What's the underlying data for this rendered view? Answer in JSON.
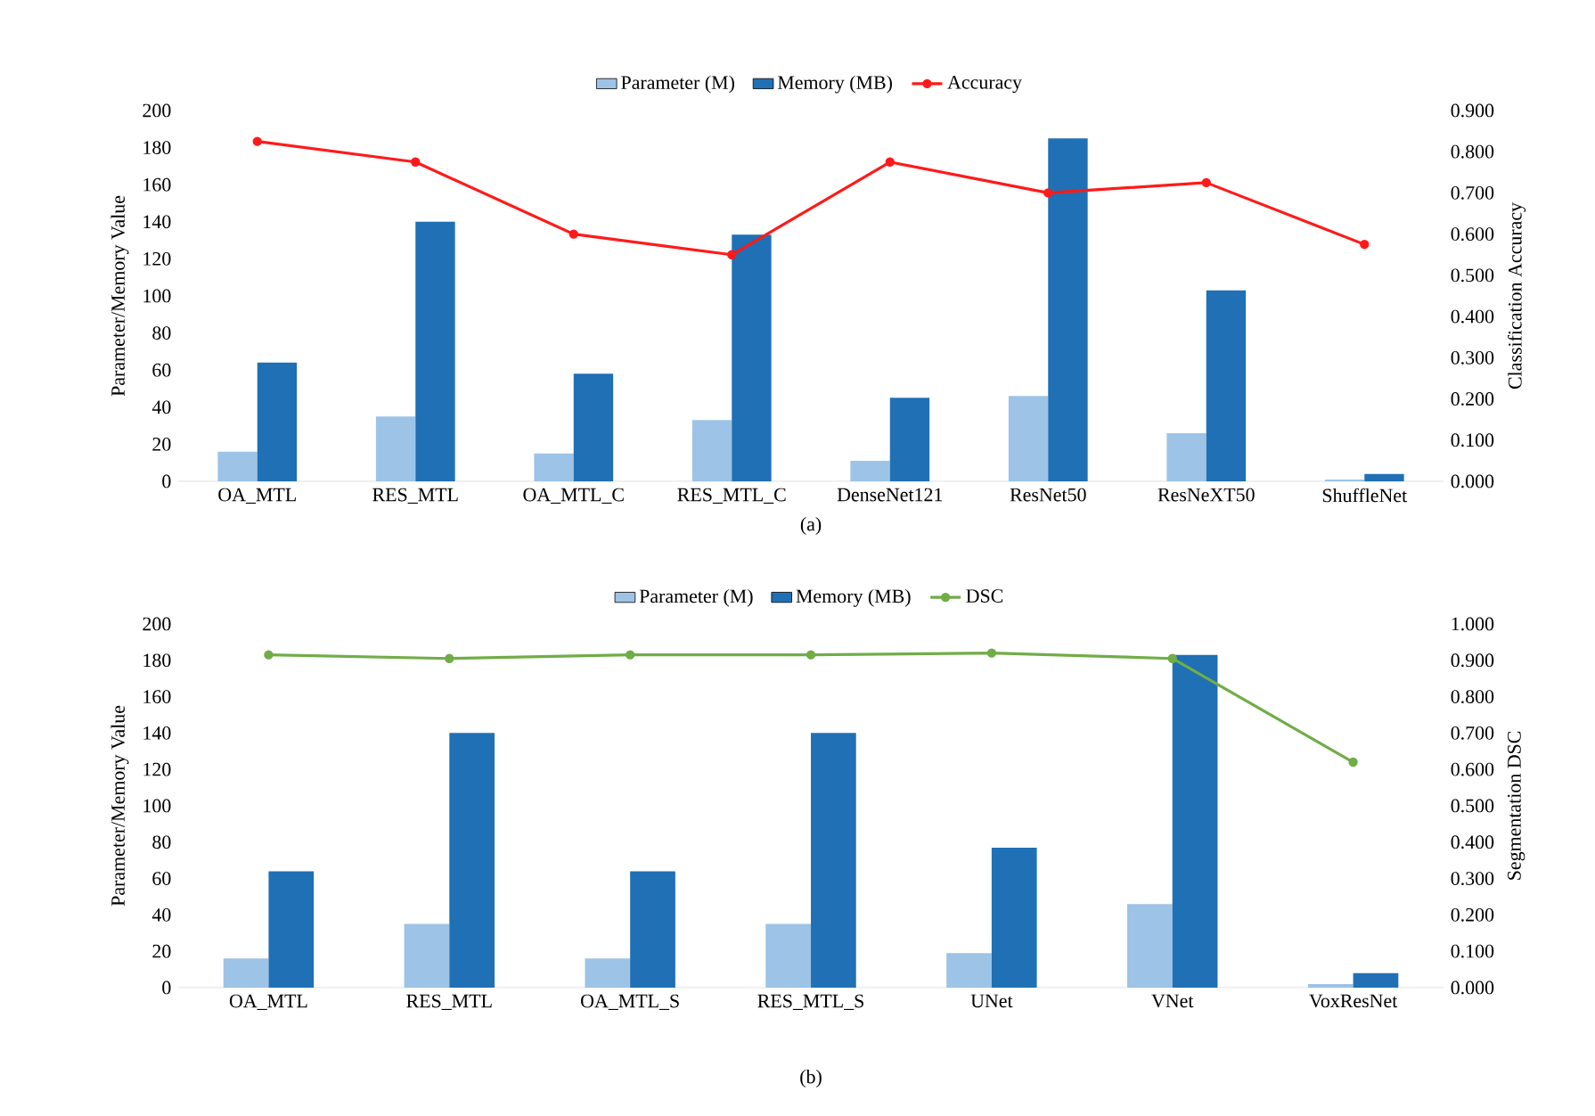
{
  "chart_data": [
    {
      "type": "bar",
      "categories": [
        "OA_MTL",
        "RES_MTL",
        "OA_MTL_C",
        "RES_MTL_C",
        "DenseNet121",
        "ResNet50",
        "ResNeXT50",
        "ShuffleNet"
      ],
      "series": [
        {
          "name": "Parameter (M)",
          "color": "#9dc3e6",
          "values": [
            16,
            35,
            15,
            33,
            11,
            46,
            26,
            1
          ]
        },
        {
          "name": "Memory (MB)",
          "color": "#1f70b5",
          "values": [
            64,
            140,
            58,
            133,
            45,
            185,
            103,
            4
          ]
        },
        {
          "name": "Accuracy",
          "color": "#ff1a1a",
          "type": "line",
          "axis": "y2",
          "values": [
            0.825,
            0.775,
            0.6,
            0.55,
            0.775,
            0.7,
            0.725,
            0.575
          ]
        }
      ],
      "ylabel": "Parameter/Memory  Value",
      "y2label": "Classification  Accuracy",
      "ylim": [
        0,
        200
      ],
      "yticks": [
        0,
        20,
        40,
        60,
        80,
        100,
        120,
        140,
        160,
        180,
        200
      ],
      "y2lim": [
        0,
        0.9
      ],
      "y2ticks": [
        {
          "value": 0,
          "label": "0.000"
        },
        {
          "value": 0.1,
          "label": "0.100"
        },
        {
          "value": 0.2,
          "label": "0.200"
        },
        {
          "value": 0.3,
          "label": "0.300"
        },
        {
          "value": 0.4,
          "label": "0.400"
        },
        {
          "value": 0.5,
          "label": "0.500"
        },
        {
          "value": 0.6,
          "label": "0.600"
        },
        {
          "value": 0.7,
          "label": "0.700"
        },
        {
          "value": 0.8,
          "label": "0.800"
        },
        {
          "value": 0.9,
          "label": "0.900"
        }
      ],
      "legend": "top",
      "marker": "circle",
      "annotations": [
        "(a)"
      ]
    },
    {
      "type": "bar",
      "categories": [
        "OA_MTL",
        "RES_MTL",
        "OA_MTL_S",
        "RES_MTL_S",
        "UNet",
        "VNet",
        "VoxResNet"
      ],
      "series": [
        {
          "name": "Parameter (M)",
          "color": "#9dc3e6",
          "values": [
            16,
            35,
            16,
            35,
            19,
            46,
            2
          ]
        },
        {
          "name": "Memory (MB)",
          "color": "#1f70b5",
          "values": [
            64,
            140,
            64,
            140,
            77,
            183,
            8
          ]
        },
        {
          "name": "DSC",
          "color": "#70ad47",
          "type": "line",
          "axis": "y2",
          "values": [
            0.915,
            0.905,
            0.915,
            0.915,
            0.92,
            0.905,
            0.62
          ]
        }
      ],
      "ylabel": "Parameter/Memory  Value",
      "y2label": "Segmentation  DSC",
      "ylim": [
        0,
        200
      ],
      "yticks": [
        0,
        20,
        40,
        60,
        80,
        100,
        120,
        140,
        160,
        180,
        200
      ],
      "y2lim": [
        0,
        1
      ],
      "y2ticks": [
        {
          "value": 0,
          "label": "0.000"
        },
        {
          "value": 0.1,
          "label": "0.100"
        },
        {
          "value": 0.2,
          "label": "0.200"
        },
        {
          "value": 0.3,
          "label": "0.300"
        },
        {
          "value": 0.4,
          "label": "0.400"
        },
        {
          "value": 0.5,
          "label": "0.500"
        },
        {
          "value": 0.6,
          "label": "0.600"
        },
        {
          "value": 0.7,
          "label": "0.700"
        },
        {
          "value": 0.8,
          "label": "0.800"
        },
        {
          "value": 0.9,
          "label": "0.900"
        },
        {
          "value": 1,
          "label": "1.000"
        }
      ],
      "legend": "top",
      "marker": "circle",
      "annotations": [
        "(b)"
      ]
    }
  ]
}
